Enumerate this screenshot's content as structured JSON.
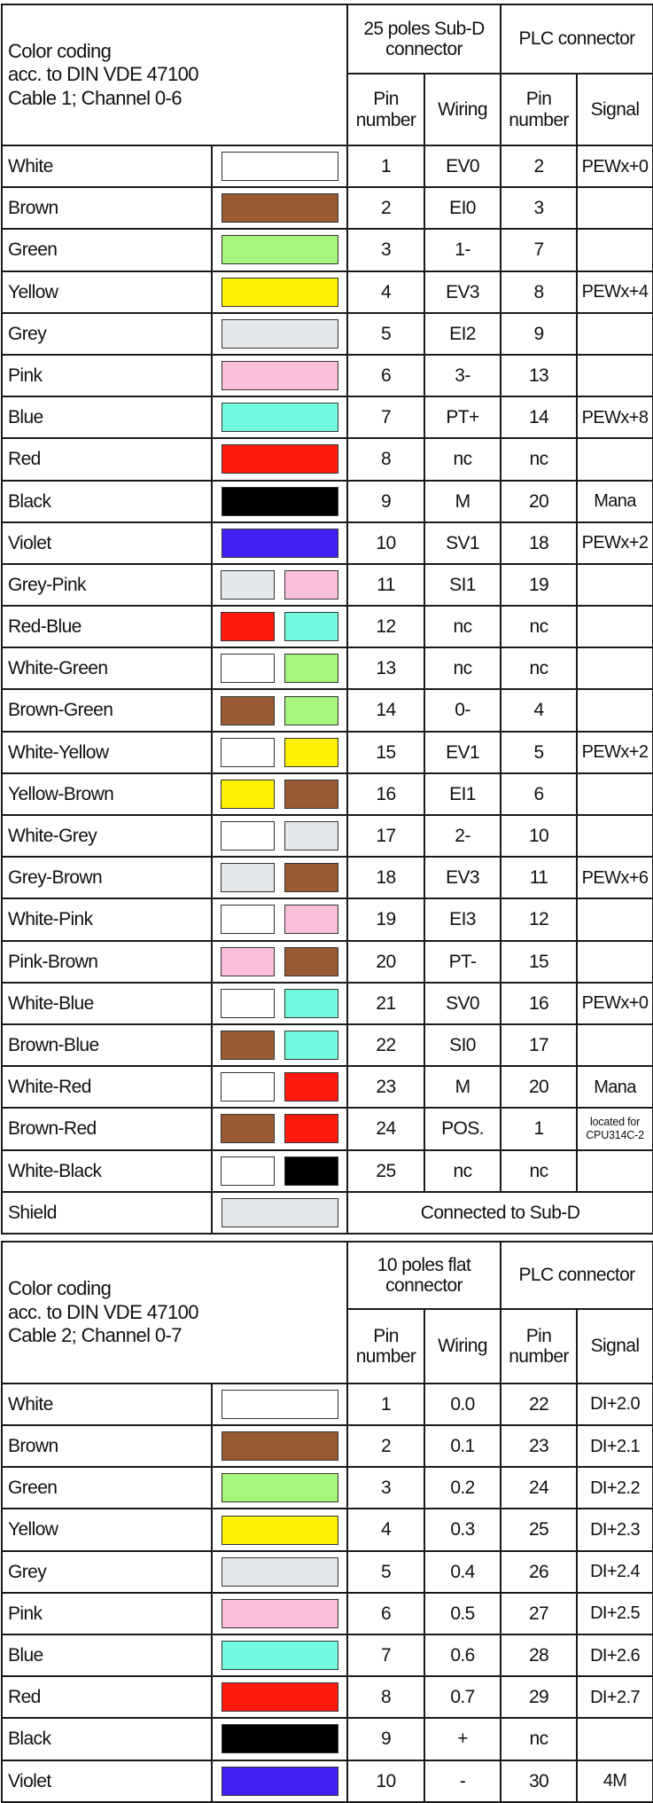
{
  "colors": {
    "White": "#ffffff",
    "Brown": "#9a5a33",
    "Green": "#a6f57c",
    "Yellow": "#fff200",
    "Grey": "#e4e8ea",
    "Pink": "#fbbfdc",
    "Blue": "#73fbe0",
    "Red": "#ff1a0d",
    "Black": "#000000",
    "Violet": "#4020f5"
  },
  "table1": {
    "title": [
      "Color coding",
      "acc. to DIN VDE 47100",
      "Cable 1; Channel 0-6"
    ],
    "group1": "25 poles Sub-D connector",
    "group2": "PLC connector",
    "headers": [
      "Pin number",
      "Wiring",
      "Pin number",
      "Signal"
    ],
    "rows": [
      {
        "name": "White",
        "swatch": [
          "White"
        ],
        "pin": "1",
        "wiring": "EV0",
        "plc_pin": "2",
        "signal": "PEWx+0"
      },
      {
        "name": "Brown",
        "swatch": [
          "Brown"
        ],
        "pin": "2",
        "wiring": "EI0",
        "plc_pin": "3",
        "signal": ""
      },
      {
        "name": "Green",
        "swatch": [
          "Green"
        ],
        "pin": "3",
        "wiring": "1-",
        "plc_pin": "7",
        "signal": ""
      },
      {
        "name": "Yellow",
        "swatch": [
          "Yellow"
        ],
        "pin": "4",
        "wiring": "EV3",
        "plc_pin": "8",
        "signal": "PEWx+4"
      },
      {
        "name": "Grey",
        "swatch": [
          "Grey"
        ],
        "pin": "5",
        "wiring": "EI2",
        "plc_pin": "9",
        "signal": ""
      },
      {
        "name": "Pink",
        "swatch": [
          "Pink"
        ],
        "pin": "6",
        "wiring": "3-",
        "plc_pin": "13",
        "signal": ""
      },
      {
        "name": "Blue",
        "swatch": [
          "Blue"
        ],
        "pin": "7",
        "wiring": "PT+",
        "plc_pin": "14",
        "signal": "PEWx+8"
      },
      {
        "name": "Red",
        "swatch": [
          "Red"
        ],
        "pin": "8",
        "wiring": "nc",
        "plc_pin": "nc",
        "signal": ""
      },
      {
        "name": "Black",
        "swatch": [
          "Black"
        ],
        "pin": "9",
        "wiring": "M",
        "plc_pin": "20",
        "signal": "Mana"
      },
      {
        "name": "Violet",
        "swatch": [
          "Violet"
        ],
        "pin": "10",
        "wiring": "SV1",
        "plc_pin": "18",
        "signal": "PEWx+2"
      },
      {
        "name": "Grey-Pink",
        "swatch": [
          "Grey",
          "Pink"
        ],
        "pin": "11",
        "wiring": "SI1",
        "plc_pin": "19",
        "signal": ""
      },
      {
        "name": "Red-Blue",
        "swatch": [
          "Red",
          "Blue"
        ],
        "pin": "12",
        "wiring": "nc",
        "plc_pin": "nc",
        "signal": ""
      },
      {
        "name": "White-Green",
        "swatch": [
          "White",
          "Green"
        ],
        "pin": "13",
        "wiring": "nc",
        "plc_pin": "nc",
        "signal": ""
      },
      {
        "name": "Brown-Green",
        "swatch": [
          "Brown",
          "Green"
        ],
        "pin": "14",
        "wiring": "0-",
        "plc_pin": "4",
        "signal": ""
      },
      {
        "name": "White-Yellow",
        "swatch": [
          "White",
          "Yellow"
        ],
        "pin": "15",
        "wiring": "EV1",
        "plc_pin": "5",
        "signal": "PEWx+2"
      },
      {
        "name": "Yellow-Brown",
        "swatch": [
          "Yellow",
          "Brown"
        ],
        "pin": "16",
        "wiring": "EI1",
        "plc_pin": "6",
        "signal": ""
      },
      {
        "name": "White-Grey",
        "swatch": [
          "White",
          "Grey"
        ],
        "pin": "17",
        "wiring": "2-",
        "plc_pin": "10",
        "signal": ""
      },
      {
        "name": "Grey-Brown",
        "swatch": [
          "Grey",
          "Brown"
        ],
        "pin": "18",
        "wiring": "EV3",
        "plc_pin": "11",
        "signal": "PEWx+6"
      },
      {
        "name": "White-Pink",
        "swatch": [
          "White",
          "Pink"
        ],
        "pin": "19",
        "wiring": "EI3",
        "plc_pin": "12",
        "signal": ""
      },
      {
        "name": "Pink-Brown",
        "swatch": [
          "Pink",
          "Brown"
        ],
        "pin": "20",
        "wiring": "PT-",
        "plc_pin": "15",
        "signal": ""
      },
      {
        "name": "White-Blue",
        "swatch": [
          "White",
          "Blue"
        ],
        "pin": "21",
        "wiring": "SV0",
        "plc_pin": "16",
        "signal": "PEWx+0"
      },
      {
        "name": "Brown-Blue",
        "swatch": [
          "Brown",
          "Blue"
        ],
        "pin": "22",
        "wiring": "SI0",
        "plc_pin": "17",
        "signal": ""
      },
      {
        "name": "White-Red",
        "swatch": [
          "White",
          "Red"
        ],
        "pin": "23",
        "wiring": "M",
        "plc_pin": "20",
        "signal": "Mana"
      },
      {
        "name": "Brown-Red",
        "swatch": [
          "Brown",
          "Red"
        ],
        "pin": "24",
        "wiring": "POS.",
        "plc_pin": "1",
        "signal": "located for CPU314C-2",
        "signal_small": true
      },
      {
        "name": "White-Black",
        "swatch": [
          "White",
          "Black"
        ],
        "pin": "25",
        "wiring": "nc",
        "plc_pin": "nc",
        "signal": ""
      }
    ],
    "shield": {
      "name": "Shield",
      "swatch": [
        "Grey"
      ],
      "text": "Connected to Sub-D"
    }
  },
  "table2": {
    "title": [
      "Color coding",
      "acc. to DIN VDE 47100",
      "Cable 2; Channel 0-7"
    ],
    "group1": "10 poles flat connector",
    "group2": "PLC connector",
    "headers": [
      "Pin number",
      "Wiring",
      "Pin number",
      "Signal"
    ],
    "rows": [
      {
        "name": "White",
        "swatch": [
          "White"
        ],
        "pin": "1",
        "wiring": "0.0",
        "plc_pin": "22",
        "signal": "DI+2.0"
      },
      {
        "name": "Brown",
        "swatch": [
          "Brown"
        ],
        "pin": "2",
        "wiring": "0.1",
        "plc_pin": "23",
        "signal": "DI+2.1"
      },
      {
        "name": "Green",
        "swatch": [
          "Green"
        ],
        "pin": "3",
        "wiring": "0.2",
        "plc_pin": "24",
        "signal": "DI+2.2"
      },
      {
        "name": "Yellow",
        "swatch": [
          "Yellow"
        ],
        "pin": "4",
        "wiring": "0.3",
        "plc_pin": "25",
        "signal": "DI+2.3"
      },
      {
        "name": "Grey",
        "swatch": [
          "Grey"
        ],
        "pin": "5",
        "wiring": "0.4",
        "plc_pin": "26",
        "signal": "DI+2.4"
      },
      {
        "name": "Pink",
        "swatch": [
          "Pink"
        ],
        "pin": "6",
        "wiring": "0.5",
        "plc_pin": "27",
        "signal": "DI+2.5"
      },
      {
        "name": "Blue",
        "swatch": [
          "Blue"
        ],
        "pin": "7",
        "wiring": "0.6",
        "plc_pin": "28",
        "signal": "DI+2.6"
      },
      {
        "name": "Red",
        "swatch": [
          "Red"
        ],
        "pin": "8",
        "wiring": "0.7",
        "plc_pin": "29",
        "signal": "DI+2.7"
      },
      {
        "name": "Black",
        "swatch": [
          "Black"
        ],
        "pin": "9",
        "wiring": "+",
        "plc_pin": "nc",
        "signal": ""
      },
      {
        "name": "Violet",
        "swatch": [
          "Violet"
        ],
        "pin": "10",
        "wiring": "-",
        "plc_pin": "30",
        "signal": "4M"
      }
    ]
  }
}
